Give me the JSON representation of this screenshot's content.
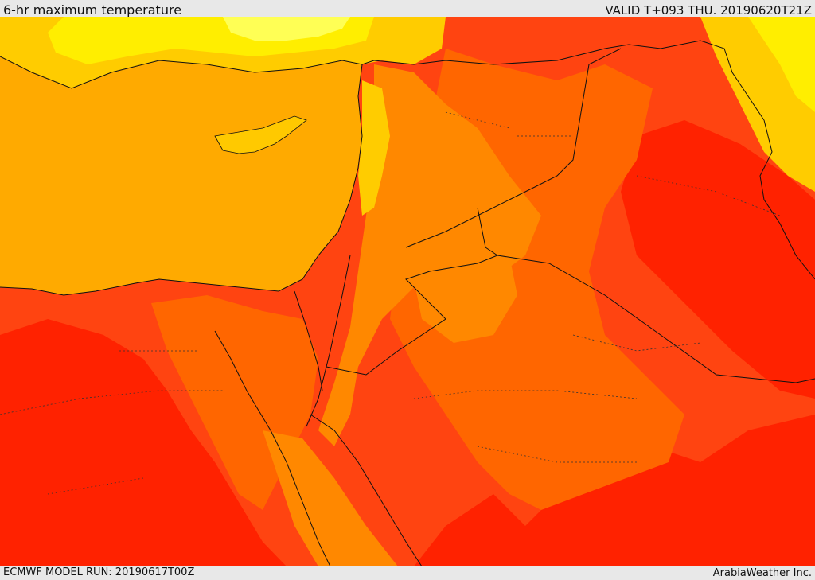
{
  "header": {
    "title": "6-hr maximum temperature",
    "valid": "VALID T+093 THU. 20190620T21Z"
  },
  "footer": {
    "model_run": "ECMWF MODEL RUN: 20190617T00Z",
    "credit": "ArabiaWeather Inc."
  },
  "map": {
    "colors": {
      "sea": "#ffaa00",
      "pale_yellow": "#ffff55",
      "yellow": "#ffee00",
      "yellow_orange": "#ffcc00",
      "orange": "#ff8800",
      "dark_orange": "#ff6600",
      "red_orange": "#ff4411",
      "red": "#ff2200",
      "coastline": "#111111",
      "border": "#111111"
    }
  }
}
